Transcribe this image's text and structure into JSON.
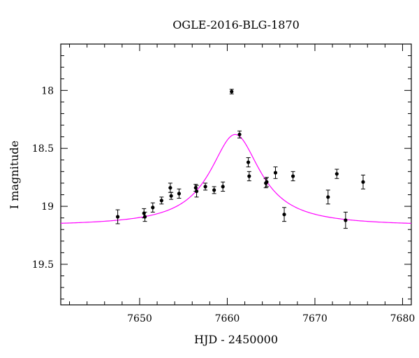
{
  "chart_data": {
    "type": "scatter",
    "title": "OGLE-2016-BLG-1870",
    "xlabel": "HJD - 2450000",
    "ylabel": "I magnitude",
    "xlim": [
      7641,
      7681
    ],
    "ylim": [
      19.85,
      17.6
    ],
    "y_inverted": true,
    "x_ticks": [
      7650,
      7660,
      7670,
      7680
    ],
    "x_minor_step": 2,
    "y_ticks": [
      18,
      18.5,
      19,
      19.5
    ],
    "y_minor_step": 0.1,
    "y_tick_labels": [
      "18",
      "18.5",
      "19",
      "19.5"
    ],
    "grid": false,
    "colors": {
      "model": "#ff00ff",
      "points": "#000000"
    },
    "series": [
      {
        "name": "",
        "type": "scatter_with_errorbars",
        "points": [
          {
            "x": 7647.5,
            "y": 19.09,
            "err": 0.06
          },
          {
            "x": 7650.5,
            "y": 19.06,
            "err": 0.04
          },
          {
            "x": 7650.6,
            "y": 19.09,
            "err": 0.04
          },
          {
            "x": 7651.5,
            "y": 19.01,
            "err": 0.04
          },
          {
            "x": 7652.5,
            "y": 18.95,
            "err": 0.03
          },
          {
            "x": 7653.5,
            "y": 18.84,
            "err": 0.04
          },
          {
            "x": 7653.6,
            "y": 18.91,
            "err": 0.03
          },
          {
            "x": 7654.5,
            "y": 18.89,
            "err": 0.04
          },
          {
            "x": 7656.4,
            "y": 18.84,
            "err": 0.03
          },
          {
            "x": 7656.5,
            "y": 18.87,
            "err": 0.05
          },
          {
            "x": 7657.5,
            "y": 18.83,
            "err": 0.03
          },
          {
            "x": 7658.5,
            "y": 18.86,
            "err": 0.03
          },
          {
            "x": 7659.5,
            "y": 18.83,
            "err": 0.04
          },
          {
            "x": 7660.5,
            "y": 18.01,
            "err": 0.02
          },
          {
            "x": 7661.4,
            "y": 18.38,
            "err": 0.03
          },
          {
            "x": 7662.4,
            "y": 18.62,
            "err": 0.04
          },
          {
            "x": 7662.5,
            "y": 18.74,
            "err": 0.04
          },
          {
            "x": 7664.4,
            "y": 18.8,
            "err": 0.04
          },
          {
            "x": 7664.5,
            "y": 18.79,
            "err": 0.04
          },
          {
            "x": 7665.5,
            "y": 18.71,
            "err": 0.05
          },
          {
            "x": 7666.5,
            "y": 19.07,
            "err": 0.06
          },
          {
            "x": 7667.5,
            "y": 18.74,
            "err": 0.04
          },
          {
            "x": 7671.5,
            "y": 18.92,
            "err": 0.06
          },
          {
            "x": 7672.5,
            "y": 18.72,
            "err": 0.04
          },
          {
            "x": 7673.5,
            "y": 19.12,
            "err": 0.07
          },
          {
            "x": 7675.5,
            "y": 18.79,
            "err": 0.06
          }
        ]
      },
      {
        "name": "",
        "type": "model_curve",
        "model": {
          "kind": "lorentzian",
          "x_center": 7660.9,
          "y_baseline": 19.17,
          "y_peak": 18.38,
          "half_width": 3.5,
          "x_start": 7641,
          "x_end": 7681,
          "samples": 241
        }
      }
    ]
  }
}
